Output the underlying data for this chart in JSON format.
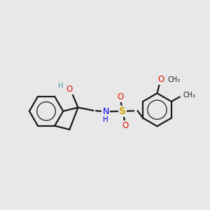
{
  "bg_color": "#e8e8e8",
  "bond_color": "#1a1a1a",
  "atom_colors": {
    "O": "#dd1100",
    "N": "#0000ee",
    "S": "#ccaa00",
    "H": "#5599aa"
  },
  "figsize": [
    3.0,
    3.0
  ],
  "dpi": 100,
  "xlim": [
    0,
    10
  ],
  "ylim": [
    0,
    10
  ]
}
